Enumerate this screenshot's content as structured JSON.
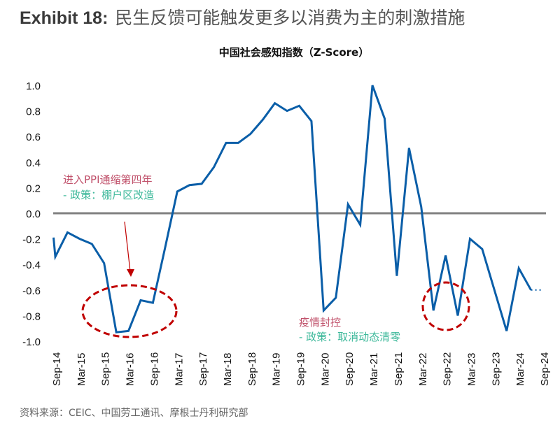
{
  "header": {
    "exhibit": "Exhibit 18:",
    "title": "民生反馈可能触发更多以消费为主的刺激措施"
  },
  "source": "资料来源：CEIC、中国劳工通讯、摩根士丹利研究部",
  "colors": {
    "line": "#0a5ea8",
    "zero_line": "#808080",
    "annotation_red": "#c0506a",
    "annotation_teal": "#3cb89a",
    "ellipse": "#c00000",
    "arrow": "#c00000"
  },
  "chart_data": {
    "type": "line",
    "title": "中国社会感知指数（Z-Score）",
    "xlabel": "",
    "ylabel": "",
    "ylim": [
      -1.0,
      1.0
    ],
    "yticks": [
      1.0,
      0.8,
      0.6,
      0.4,
      0.2,
      0.0,
      -0.2,
      -0.4,
      -0.6,
      -0.8,
      -1.0
    ],
    "ytick_labels": [
      "1.0",
      "0.8",
      "0.6",
      "0.4",
      "0.2",
      "0.0",
      "-0.2",
      "-0.4",
      "-0.6",
      "-0.8",
      "-1.0"
    ],
    "xtick_labels": [
      "Sep-14",
      "Mar-15",
      "Sep-15",
      "Mar-16",
      "Sep-16",
      "Mar-17",
      "Sep-17",
      "Mar-18",
      "Sep-18",
      "Mar-19",
      "Sep-19",
      "Mar-20",
      "Sep-20",
      "Mar-21",
      "Sep-21",
      "Mar-22",
      "Sep-22",
      "Mar-23",
      "Sep-23",
      "Mar-24",
      "Sep-24"
    ],
    "grid": false,
    "series": [
      {
        "x": [
          "Aug-14",
          "Sep-14",
          "Dec-14",
          "Mar-15",
          "Jun-15",
          "Sep-15",
          "Dec-15",
          "Mar-16",
          "Jun-16",
          "Sep-16",
          "Dec-16",
          "Mar-17",
          "Jun-17",
          "Sep-17",
          "Dec-17",
          "Mar-18",
          "Jun-18",
          "Sep-18",
          "Dec-18",
          "Mar-19",
          "Jun-19",
          "Sep-19",
          "Dec-19",
          "Mar-20",
          "Jun-20",
          "Sep-20",
          "Dec-20",
          "Mar-21",
          "Jun-21",
          "Sep-21",
          "Dec-21",
          "Mar-22",
          "Jun-22",
          "Sep-22",
          "Dec-22",
          "Mar-23",
          "Jun-23",
          "Sep-23",
          "Dec-23",
          "Mar-24",
          "Jun-24"
        ],
        "values": [
          -0.19,
          -0.34,
          -0.15,
          -0.2,
          -0.24,
          -0.39,
          -0.93,
          -0.92,
          -0.68,
          -0.7,
          -0.27,
          0.17,
          0.22,
          0.23,
          0.36,
          0.55,
          0.55,
          0.62,
          0.73,
          0.86,
          0.8,
          0.84,
          0.72,
          -0.76,
          -0.66,
          0.07,
          -0.09,
          1.0,
          0.74,
          -0.49,
          0.51,
          0.05,
          -0.76,
          -0.33,
          -0.8,
          -0.2,
          -0.28,
          -0.6,
          -0.92,
          -0.43,
          -0.6
        ]
      }
    ],
    "projection": {
      "x": [
        "Jun-24",
        "Sep-24"
      ],
      "values": [
        -0.6,
        -0.6
      ],
      "style": "dotted"
    },
    "annotations": [
      {
        "line1": "进入PPI通缩第四年",
        "line2": "- 政策：棚户区改造"
      },
      {
        "line1": "疫情封控",
        "line2": "- 政策：取消动态清零"
      }
    ]
  }
}
